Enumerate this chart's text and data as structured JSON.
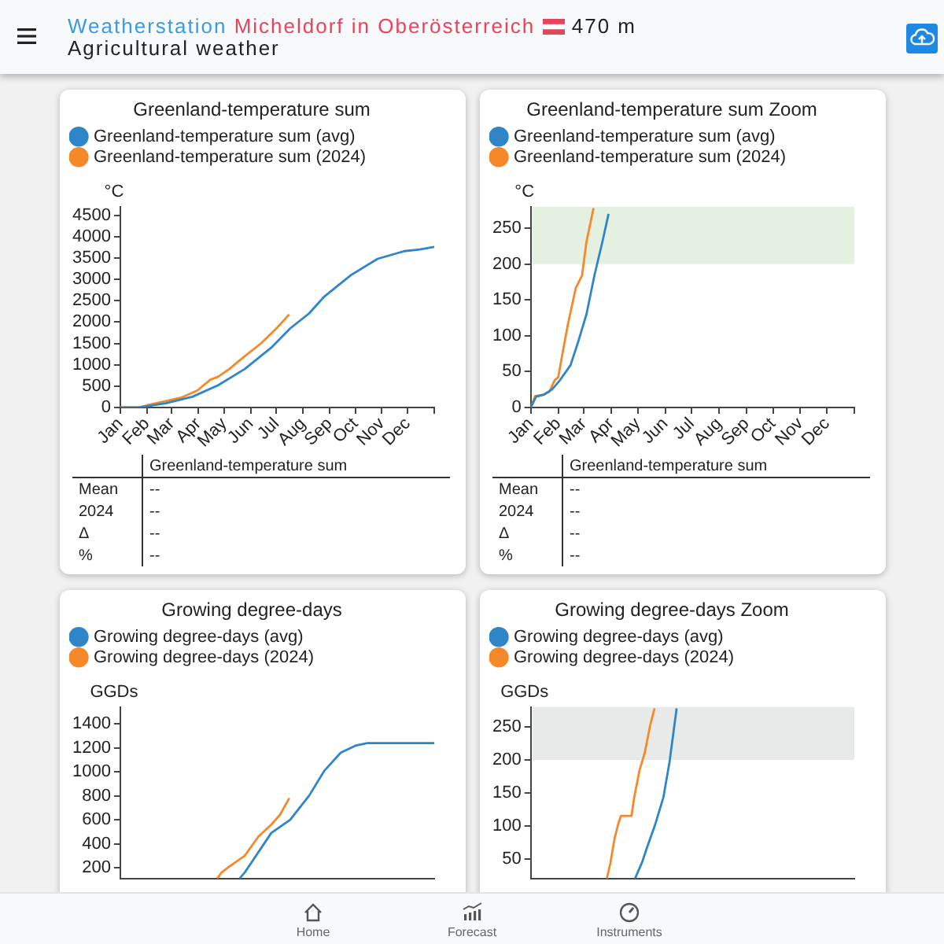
{
  "chart_data": [
    {
      "type": "other",
      "title": "Weatherstation Micheldorf in Oberösterreich",
      "subtitle": "Agricultural weather",
      "annotations": [
        "470 m",
        "Home",
        "Forecast",
        "Instruments"
      ]
    },
    {
      "type": "line",
      "title": "Greenland-temperature sum",
      "ylabel": "°C",
      "legend": "top left",
      "xlim": [
        "2024-01-01",
        "2025-01-01"
      ],
      "ylim": [
        0,
        4700
      ],
      "yticks": [
        0,
        500,
        1000,
        1500,
        2000,
        2500,
        3000,
        3500,
        4000,
        4500
      ],
      "xticks": [
        {
          "value": "2024-01-01",
          "label": "Jan"
        },
        {
          "value": "2024-02-01",
          "label": "Feb"
        },
        {
          "value": "2024-03-01",
          "label": "Mar"
        },
        {
          "value": "2024-04-01",
          "label": "Apr"
        },
        {
          "value": "2024-05-01",
          "label": "May"
        },
        {
          "value": "2024-06-01",
          "label": "Jun"
        },
        {
          "value": "2024-07-01",
          "label": "Jul"
        },
        {
          "value": "2024-08-01",
          "label": "Aug"
        },
        {
          "value": "2024-09-01",
          "label": "Sep"
        },
        {
          "value": "2024-10-01",
          "label": "Oct"
        },
        {
          "value": "2024-11-01",
          "label": "Nov"
        },
        {
          "value": "2024-12-01",
          "label": "Dec"
        },
        {
          "value": "2025-01-01",
          "label": null
        }
      ],
      "series": [
        {
          "name": "Greenland-temperature sum (avg)",
          "color": "#2e86c8",
          "x": [
            "2024-01-01",
            "2024-01-23",
            "2024-02-23",
            "2024-03-25",
            "2024-04-24",
            "2024-05-25",
            "2024-06-25",
            "2024-07-17",
            "2024-08-08",
            "2024-08-26",
            "2024-09-26",
            "2024-10-27",
            "2024-11-27",
            "2024-12-15",
            "2025-01-01"
          ],
          "values": [
            0,
            0,
            100,
            250,
            520,
            900,
            1400,
            1850,
            2200,
            2600,
            3100,
            3480,
            3660,
            3700,
            3760
          ]
        },
        {
          "name": "Greenland-temperature sum (2024)",
          "color": "#f5892a",
          "x": [
            "2024-01-01",
            "2024-01-23",
            "2024-02-01",
            "2024-02-23",
            "2024-03-12",
            "2024-03-31",
            "2024-04-15",
            "2024-04-24",
            "2024-05-07",
            "2024-05-25",
            "2024-06-13",
            "2024-07-01",
            "2024-07-16"
          ],
          "values": [
            0,
            0,
            50,
            150,
            230,
            400,
            650,
            720,
            900,
            1200,
            1500,
            1850,
            2180
          ]
        }
      ],
      "annotations": [
        "Greenland-temperature sum",
        "Mean",
        "--",
        "2024",
        "--",
        "Δ",
        "--",
        "%",
        "--"
      ]
    },
    {
      "type": "line",
      "title": "Greenland-temperature sum Zoom",
      "ylabel": "°C",
      "legend": "top left",
      "xlim": [
        "2024-01-01",
        "2025-01-01"
      ],
      "ylim": [
        0,
        280
      ],
      "yticks": [
        0,
        50,
        100,
        150,
        200,
        250
      ],
      "xticks": [
        {
          "value": "2024-01-01",
          "label": "Jan"
        },
        {
          "value": "2024-02-01",
          "label": "Feb"
        },
        {
          "value": "2024-03-01",
          "label": "Mar"
        },
        {
          "value": "2024-04-01",
          "label": "Apr"
        },
        {
          "value": "2024-05-01",
          "label": "May"
        },
        {
          "value": "2024-06-01",
          "label": "Jun"
        },
        {
          "value": "2024-07-01",
          "label": "Jul"
        },
        {
          "value": "2024-08-01",
          "label": "Aug"
        },
        {
          "value": "2024-09-01",
          "label": "Sep"
        },
        {
          "value": "2024-10-01",
          "label": "Oct"
        },
        {
          "value": "2024-11-01",
          "label": "Nov"
        },
        {
          "value": "2024-12-01",
          "label": "Dec"
        },
        {
          "value": "2025-01-01",
          "label": null
        }
      ],
      "bands": [
        {
          "axis": "y",
          "from": 200,
          "to": 280,
          "color": "#e4f1e1"
        }
      ],
      "series": [
        {
          "name": "Greenland-temperature sum (avg)",
          "color": "#2e86c8",
          "x": [
            "2024-01-01",
            "2024-01-07",
            "2024-01-16",
            "2024-01-25",
            "2024-02-03",
            "2024-02-15",
            "2024-02-24",
            "2024-03-04",
            "2024-03-13",
            "2024-03-22",
            "2024-03-29"
          ],
          "values": [
            0,
            15,
            18,
            25,
            38,
            59,
            93,
            130,
            184,
            231,
            270
          ]
        },
        {
          "name": "Greenland-temperature sum (2024)",
          "color": "#f5892a",
          "x": [
            "2024-01-01",
            "2024-01-06",
            "2024-01-16",
            "2024-01-22",
            "2024-01-28",
            "2024-02-01",
            "2024-02-06",
            "2024-02-12",
            "2024-02-21",
            "2024-02-28",
            "2024-03-04",
            "2024-03-12"
          ],
          "values": [
            0,
            16,
            18,
            22,
            38,
            42,
            76,
            116,
            167,
            184,
            231,
            278
          ]
        }
      ],
      "annotations": [
        "Greenland-temperature sum",
        "Mean",
        "--",
        "2024",
        "--",
        "Δ",
        "--",
        "%",
        "--"
      ]
    },
    {
      "type": "line",
      "title": "Growing degree-days",
      "ylabel": "GGDs",
      "legend": "top left",
      "tick_labels": "y",
      "xlim": [
        "2024-01-01",
        "2025-01-01"
      ],
      "ylim": [
        110,
        1540
      ],
      "yticks": [
        200,
        400,
        600,
        800,
        1000,
        1200,
        1400
      ],
      "series": [
        {
          "name": "Growing degree-days (avg)",
          "color": "#2e86c8",
          "x": [
            "2024-05-19",
            "2024-05-25",
            "2024-06-25",
            "2024-07-17",
            "2024-08-08",
            "2024-08-26",
            "2024-09-14",
            "2024-10-02",
            "2024-10-15",
            "2025-01-01"
          ],
          "values": [
            110,
            160,
            490,
            600,
            800,
            1010,
            1160,
            1220,
            1240,
            1240
          ]
        },
        {
          "name": "Growing degree-days (2024)",
          "color": "#f5892a",
          "x": [
            "2024-04-23",
            "2024-04-28",
            "2024-05-07",
            "2024-05-25",
            "2024-06-10",
            "2024-06-25",
            "2024-07-05",
            "2024-07-16"
          ],
          "values": [
            110,
            160,
            210,
            300,
            460,
            560,
            640,
            780
          ]
        }
      ]
    },
    {
      "type": "line",
      "title": "Growing degree-days Zoom",
      "ylabel": "GGDs",
      "legend": "top left",
      "tick_labels": "y",
      "xlim": [
        "2024-01-01",
        "2025-01-01"
      ],
      "ylim": [
        20,
        280
      ],
      "yticks": [
        50,
        100,
        150,
        200,
        250
      ],
      "bands": [
        {
          "axis": "y",
          "from": 200,
          "to": 280,
          "color": "#e7eae9"
        }
      ],
      "series": [
        {
          "name": "Growing degree-days (avg)",
          "color": "#2e86c8",
          "x": [
            "2024-04-28",
            "2024-05-06",
            "2024-05-12",
            "2024-05-21",
            "2024-05-30",
            "2024-06-06",
            "2024-06-14"
          ],
          "values": [
            20,
            45,
            69,
            103,
            143,
            197,
            278
          ]
        },
        {
          "name": "Growing degree-days (2024)",
          "color": "#f5892a",
          "x": [
            "2024-03-27",
            "2024-03-31",
            "2024-04-05",
            "2024-04-09",
            "2024-04-12",
            "2024-04-24",
            "2024-04-27",
            "2024-05-03",
            "2024-05-09",
            "2024-05-15",
            "2024-05-20"
          ],
          "values": [
            20,
            43,
            82,
            103,
            115,
            115,
            143,
            184,
            211,
            252,
            278
          ]
        }
      ]
    }
  ]
}
